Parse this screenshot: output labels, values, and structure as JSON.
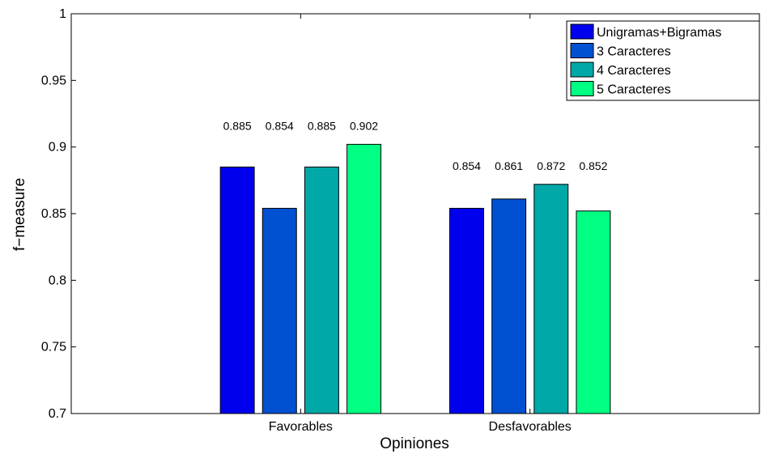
{
  "chart_data": {
    "type": "bar",
    "title": "",
    "xlabel": "Opiniones",
    "ylabel": "f−measure",
    "categories": [
      "Favorables",
      "Desfavorables"
    ],
    "series": [
      {
        "name": "Unigramas+Bigramas",
        "color": "#0000ee",
        "values": [
          0.885,
          0.854
        ],
        "labels": [
          "0.885",
          "0.854"
        ]
      },
      {
        "name": "3 Caracteres",
        "color": "#0050d2",
        "values": [
          0.854,
          0.861
        ],
        "labels": [
          "0.854",
          "0.861"
        ]
      },
      {
        "name": "4 Caracteres",
        "color": "#00a8a8",
        "values": [
          0.885,
          0.872
        ],
        "labels": [
          "0.885",
          "0.872"
        ]
      },
      {
        "name": "5 Caracteres",
        "color": "#00ff82",
        "values": [
          0.902,
          0.852
        ],
        "labels": [
          "0.902",
          "0.852"
        ]
      }
    ],
    "ylim": [
      0.7,
      1
    ],
    "yticks": [
      "0.7",
      "0.75",
      "0.8",
      "0.85",
      "0.9",
      "0.95",
      "1"
    ],
    "grid": false,
    "legend_position": "top-right"
  }
}
